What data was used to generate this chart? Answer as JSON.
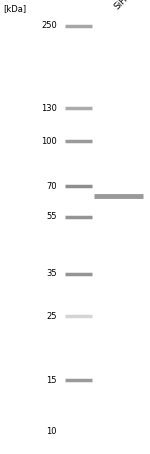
{
  "title_kda": "[kDa]",
  "sample_label": "SiHa",
  "fig_width": 1.5,
  "fig_height": 4.54,
  "dpi": 100,
  "bg_color": "#ffffff",
  "gel_bg": "#f8f8f8",
  "ladder_kda": [
    250,
    130,
    100,
    70,
    55,
    35,
    25,
    15,
    10
  ],
  "sample_band_kda": 65,
  "band_color_ladder": "#888888",
  "band_color_sample": "#777777",
  "border_color": "#444444",
  "label_fontsize": 6.0,
  "header_fontsize": 6.5,
  "kda_label_fontsize": 6.0,
  "log_min": 9,
  "log_max": 270,
  "ladder_alphas": [
    0.75,
    0.7,
    0.85,
    0.95,
    0.9,
    0.9,
    0.35,
    0.85,
    0.0
  ],
  "sample_alpha": 0.75,
  "ladder_lw": 2.5,
  "sample_lw": 3.5
}
